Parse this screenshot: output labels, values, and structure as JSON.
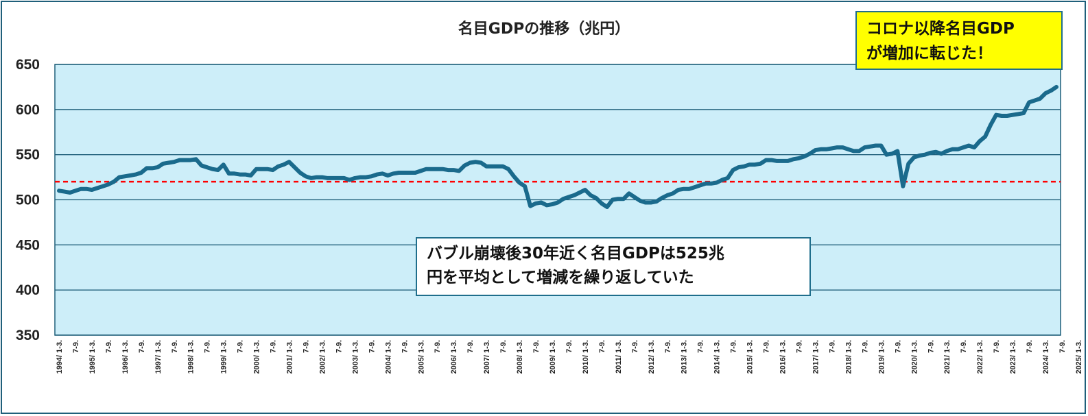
{
  "chart_data": {
    "type": "line",
    "title": "名目GDPの推移（兆円）",
    "ylim": [
      350,
      650
    ],
    "yticks": [
      650,
      600,
      550,
      500,
      450,
      400,
      350
    ],
    "grid": "horizontal",
    "plot_background": "#cdeef9",
    "line_color": "#1a6a8c",
    "reference_line": {
      "value": 520,
      "color": "#ff0000",
      "style": "dashed"
    },
    "x_labels": [
      "1994/ 1-3.",
      "7-9.",
      "1995/ 1-3.",
      "7-9.",
      "1996/ 1-3.",
      "7-9.",
      "1997/ 1-3.",
      "7-9.",
      "1998/ 1-3.",
      "7-9.",
      "1999/ 1-3.",
      "7-9.",
      "2000/ 1-3.",
      "7-9.",
      "2001/ 1-3.",
      "7-9.",
      "2002/ 1-3.",
      "7-9.",
      "2003/ 1-3.",
      "7-9.",
      "2004/ 1-3.",
      "7-9.",
      "2005/ 1-3.",
      "7-9.",
      "2006/ 1-3.",
      "7-9.",
      "2007/ 1-3.",
      "7-9.",
      "2008/ 1-3.",
      "7-9.",
      "2009/ 1-3.",
      "7-9.",
      "2010/ 1-3.",
      "7-9.",
      "2011/ 1-3.",
      "7-9.",
      "2012/ 1-3.",
      "7-9.",
      "2013/ 1-3.",
      "7-9.",
      "2014/ 1-3.",
      "7-9.",
      "2015/ 1-3.",
      "7-9.",
      "2016/ 1-3.",
      "7-9.",
      "2017/ 1-3.",
      "7-9.",
      "2018/ 1-3.",
      "7-9.",
      "2019/ 1-3.",
      "7-9.",
      "2020/ 1-3.",
      "7-9.",
      "2021/ 1-3.",
      "7-9.",
      "2022/ 1-3.",
      "7-9.",
      "2023/ 1-3.",
      "7-9.",
      "2024/ 1-3.",
      "7-9.",
      "2025/ 1-3."
    ],
    "values": [
      510,
      509,
      508,
      510,
      512,
      512,
      511,
      513,
      515,
      517,
      520,
      525,
      526,
      527,
      528,
      530,
      535,
      535,
      536,
      540,
      541,
      542,
      544,
      544,
      544,
      545,
      538,
      536,
      534,
      533,
      539,
      529,
      529,
      528,
      528,
      527,
      534,
      534,
      534,
      533,
      537,
      539,
      542,
      536,
      530,
      526,
      524,
      525,
      525,
      524,
      524,
      524,
      524,
      522,
      524,
      525,
      525,
      526,
      528,
      529,
      527,
      529,
      530,
      530,
      530,
      530,
      532,
      534,
      534,
      534,
      534,
      533,
      533,
      532,
      538,
      541,
      542,
      541,
      537,
      537,
      537,
      537,
      534,
      526,
      519,
      515,
      493,
      496,
      497,
      494,
      495,
      497,
      501,
      503,
      505,
      508,
      511,
      505,
      502,
      496,
      492,
      500,
      501,
      501,
      507,
      503,
      499,
      497,
      497,
      498,
      502,
      505,
      507,
      511,
      512,
      512,
      514,
      516,
      518,
      518,
      519,
      522,
      524,
      533,
      536,
      537,
      539,
      539,
      540,
      544,
      544,
      543,
      543,
      543,
      545,
      546,
      548,
      551,
      555,
      556,
      556,
      557,
      558,
      558,
      556,
      554,
      554,
      558,
      559,
      560,
      560,
      550,
      551,
      554,
      515,
      540,
      547,
      549,
      550,
      552,
      553,
      551,
      554,
      556,
      556,
      558,
      560,
      558,
      565,
      570,
      583,
      594,
      593,
      593,
      594,
      595,
      596,
      608,
      610,
      612,
      618,
      621,
      625
    ]
  },
  "callouts": {
    "top_right": [
      "コロナ以降名目GDP",
      "が増加に転じた！"
    ],
    "middle": [
      "バブル崩壊後30年近く名目GDPは525兆",
      "円を平均として増減を繰り返していた"
    ]
  }
}
